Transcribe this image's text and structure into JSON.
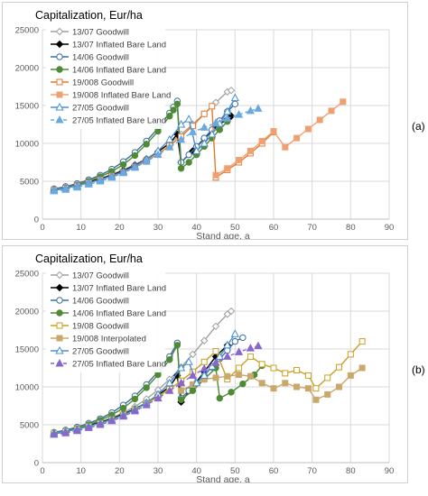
{
  "chart_data": [
    {
      "id": "a",
      "type": "line",
      "panel_label": "(a)",
      "title": "Capitalization, Eur/ha",
      "xlabel": "Stand age, a",
      "xlim": [
        0,
        90
      ],
      "ylim": [
        0,
        25000
      ],
      "xticks": [
        "0",
        "10",
        "20",
        "30",
        "40",
        "50",
        "60",
        "70",
        "80",
        "90"
      ],
      "yticks": [
        "0",
        "5000",
        "10000",
        "15000",
        "20000",
        "25000"
      ],
      "grid": true,
      "legend": "top-left",
      "series": [
        {
          "name": "13/07 Goodwill",
          "color": "#a0a0a0",
          "marker": "diamond-open",
          "dash": false,
          "x": [
            3,
            6,
            9,
            12,
            15,
            18,
            21,
            24,
            27,
            30,
            33,
            36,
            39,
            42,
            45,
            48,
            49
          ],
          "y": [
            4000,
            4250,
            4600,
            5000,
            5400,
            5900,
            6500,
            7200,
            8000,
            8900,
            10000,
            11200,
            12500,
            13900,
            15400,
            16800,
            17000
          ]
        },
        {
          "name": "13/07 Inflated Bare Land",
          "color": "#000000",
          "marker": "diamond",
          "dash": false,
          "x": [
            3,
            6,
            9,
            12,
            15,
            18,
            21,
            24,
            27,
            30,
            33,
            35,
            36,
            39,
            42,
            45,
            48,
            49
          ],
          "y": [
            3800,
            4100,
            4500,
            4900,
            5300,
            5800,
            6400,
            7100,
            7900,
            8900,
            10000,
            11200,
            7500,
            9000,
            10600,
            12200,
            13200,
            13600
          ]
        },
        {
          "name": "14/06 Goodwill",
          "color": "#3b6fa0",
          "marker": "circle-open",
          "dash": false,
          "x": [
            3,
            6,
            9,
            12,
            15,
            18,
            21,
            24,
            27,
            30,
            33,
            34,
            35,
            36,
            38,
            40,
            42,
            44,
            46,
            48,
            50
          ],
          "y": [
            4000,
            4300,
            4700,
            5200,
            5800,
            6600,
            7600,
            8800,
            10300,
            12000,
            14000,
            14800,
            15600,
            7500,
            8500,
            9600,
            10700,
            11800,
            13000,
            14200,
            15200
          ]
        },
        {
          "name": "14/06 Inflated Bare Land",
          "color": "#4f8a35",
          "marker": "circle",
          "dash": false,
          "x": [
            3,
            6,
            9,
            12,
            15,
            18,
            21,
            24,
            27,
            30,
            33,
            34,
            35,
            36,
            38,
            40,
            42,
            44,
            46,
            48
          ],
          "y": [
            3800,
            4100,
            4500,
            5000,
            5600,
            6300,
            7200,
            8400,
            9900,
            11600,
            13600,
            14400,
            15200,
            6700,
            7500,
            8500,
            9600,
            10700,
            11800,
            12900
          ]
        },
        {
          "name": "19/008 Goodwill",
          "color": "#e07a2e",
          "marker": "square-open",
          "dash": false,
          "x": [
            3,
            6,
            9,
            12,
            15,
            18,
            21,
            24,
            27,
            30,
            33,
            36,
            39,
            42,
            44,
            45,
            48,
            51,
            54,
            57,
            60
          ],
          "y": [
            3900,
            4100,
            4400,
            4800,
            5200,
            5700,
            6200,
            6900,
            7700,
            8600,
            9700,
            10900,
            12300,
            13900,
            14900,
            5500,
            6500,
            7500,
            8700,
            10000,
            11500
          ]
        },
        {
          "name": "19/008 Inflated Bare Land",
          "color": "#f0a070",
          "marker": "square",
          "dash": false,
          "x": [
            45,
            48,
            51,
            54,
            57,
            60,
            63,
            66,
            69,
            72,
            75,
            78
          ],
          "y": [
            5800,
            6700,
            7800,
            9000,
            10300,
            11600,
            9500,
            10700,
            11900,
            13100,
            14300,
            15500
          ]
        },
        {
          "name": "27/05 Goodwill",
          "color": "#4a90d0",
          "marker": "triangle-open",
          "dash": false,
          "x": [
            3,
            6,
            9,
            12,
            15,
            18,
            21,
            24,
            27,
            30,
            33,
            36,
            38,
            40,
            42,
            44,
            46,
            48,
            50
          ],
          "y": [
            3900,
            4100,
            4400,
            4800,
            5200,
            5700,
            6300,
            7000,
            7900,
            9000,
            10500,
            12500,
            13200,
            9000,
            10000,
            11200,
            12600,
            14200,
            16000
          ]
        },
        {
          "name": "27/05 Inflated Bare Land",
          "color": "#6aa8e0",
          "marker": "triangle",
          "dash": true,
          "x": [
            3,
            6,
            9,
            12,
            15,
            18,
            21,
            24,
            27,
            30,
            33,
            36,
            39,
            42,
            45,
            48,
            51,
            54,
            56
          ],
          "y": [
            3700,
            3900,
            4200,
            4600,
            5000,
            5500,
            6100,
            6800,
            7600,
            8500,
            9500,
            10500,
            11500,
            12100,
            12700,
            13300,
            13800,
            14300,
            14600
          ]
        }
      ]
    },
    {
      "id": "b",
      "type": "line",
      "panel_label": "(b)",
      "title": "Capitalization, Eur/ha",
      "xlabel": "Stand age, a",
      "xlim": [
        0,
        90
      ],
      "ylim": [
        0,
        25000
      ],
      "xticks": [
        "0",
        "10",
        "20",
        "30",
        "40",
        "50",
        "60",
        "70",
        "80",
        "90"
      ],
      "yticks": [
        "0",
        "5000",
        "10000",
        "15000",
        "20000",
        "25000"
      ],
      "grid": true,
      "legend": "top-left",
      "series": [
        {
          "name": "13/07 Goodwill",
          "color": "#a0a0a0",
          "marker": "diamond-open",
          "dash": false,
          "x": [
            3,
            6,
            9,
            12,
            15,
            18,
            21,
            24,
            27,
            30,
            33,
            36,
            39,
            42,
            45,
            48,
            49
          ],
          "y": [
            4000,
            4250,
            4600,
            5000,
            5400,
            5900,
            6600,
            7400,
            8400,
            9600,
            11000,
            12600,
            14300,
            16100,
            18000,
            19600,
            20000
          ]
        },
        {
          "name": "13/07 Inflated Bare Land",
          "color": "#000000",
          "marker": "diamond",
          "dash": false,
          "x": [
            3,
            6,
            9,
            12,
            15,
            18,
            21,
            24,
            27,
            30,
            33,
            35,
            36,
            39,
            42,
            45,
            48
          ],
          "y": [
            3800,
            4100,
            4500,
            4900,
            5300,
            5800,
            6400,
            7100,
            7900,
            8900,
            10000,
            11500,
            8000,
            10000,
            12000,
            14000,
            15500
          ]
        },
        {
          "name": "14/06 Goodwill",
          "color": "#3b6fa0",
          "marker": "circle-open",
          "dash": false,
          "x": [
            3,
            6,
            9,
            12,
            15,
            18,
            21,
            24,
            27,
            30,
            33,
            35,
            36,
            38,
            40,
            42,
            44,
            46,
            48,
            50,
            52
          ],
          "y": [
            4000,
            4300,
            4700,
            5200,
            5800,
            6600,
            7600,
            8800,
            10300,
            12000,
            14000,
            15800,
            8500,
            9500,
            10500,
            11500,
            12600,
            13700,
            14800,
            16000,
            16500
          ]
        },
        {
          "name": "14/06 Inflated Bare Land",
          "color": "#4f8a35",
          "marker": "circle",
          "dash": false,
          "x": [
            3,
            6,
            9,
            12,
            15,
            18,
            21,
            24,
            27,
            30,
            33,
            35,
            36,
            39,
            42,
            45,
            46,
            49,
            52,
            55,
            57
          ],
          "y": [
            3800,
            4100,
            4500,
            5000,
            5600,
            6300,
            7200,
            8400,
            9900,
            11600,
            13600,
            15500,
            8300,
            9500,
            11000,
            12500,
            8500,
            9300,
            10400,
            11600,
            12800
          ]
        },
        {
          "name": "19/08 Goodwill",
          "color": "#c9a020",
          "marker": "square-open",
          "dash": false,
          "x": [
            3,
            6,
            9,
            12,
            15,
            18,
            21,
            24,
            27,
            30,
            33,
            36,
            39,
            42,
            45,
            48,
            51,
            54,
            57,
            60,
            63,
            66,
            69,
            71,
            74,
            77,
            80,
            83
          ],
          "y": [
            3900,
            4100,
            4400,
            4800,
            5200,
            5700,
            6300,
            7000,
            7800,
            8700,
            9700,
            10800,
            12000,
            13300,
            14700,
            11000,
            12500,
            14000,
            13000,
            12500,
            11800,
            12200,
            11500,
            9800,
            11200,
            12600,
            14300,
            16000
          ]
        },
        {
          "name": "19/008 Interpolated",
          "color": "#c9a86a",
          "marker": "square",
          "dash": false,
          "x": [
            36,
            39,
            42,
            45,
            48,
            51,
            54,
            57,
            60,
            63,
            66,
            69,
            71,
            74,
            77,
            80,
            83
          ],
          "y": [
            9500,
            10300,
            11000,
            11200,
            11400,
            11600,
            11400,
            10500,
            9800,
            10500,
            10000,
            9800,
            8300,
            9000,
            10000,
            11500,
            12500
          ]
        },
        {
          "name": "27/05 Goodwill",
          "color": "#4a90d0",
          "marker": "triangle-open",
          "dash": false,
          "x": [
            3,
            6,
            9,
            12,
            15,
            18,
            21,
            24,
            27,
            30,
            33,
            36,
            38,
            40,
            42,
            44,
            46,
            48,
            50
          ],
          "y": [
            3900,
            4100,
            4400,
            4800,
            5200,
            5700,
            6300,
            7000,
            7900,
            9000,
            10500,
            12500,
            13300,
            10500,
            11500,
            12700,
            14000,
            15500,
            17000
          ]
        },
        {
          "name": "27/05 Inflated Bare Land",
          "color": "#8866cc",
          "marker": "triangle",
          "dash": true,
          "x": [
            3,
            6,
            9,
            12,
            15,
            18,
            21,
            24,
            27,
            30,
            33,
            36,
            39,
            42,
            45,
            48,
            51,
            54,
            56
          ],
          "y": [
            3700,
            3900,
            4200,
            4600,
            5000,
            5500,
            6100,
            6800,
            7600,
            8500,
            9500,
            10500,
            11500,
            12400,
            13200,
            14000,
            14600,
            15100,
            15400
          ]
        }
      ]
    }
  ]
}
